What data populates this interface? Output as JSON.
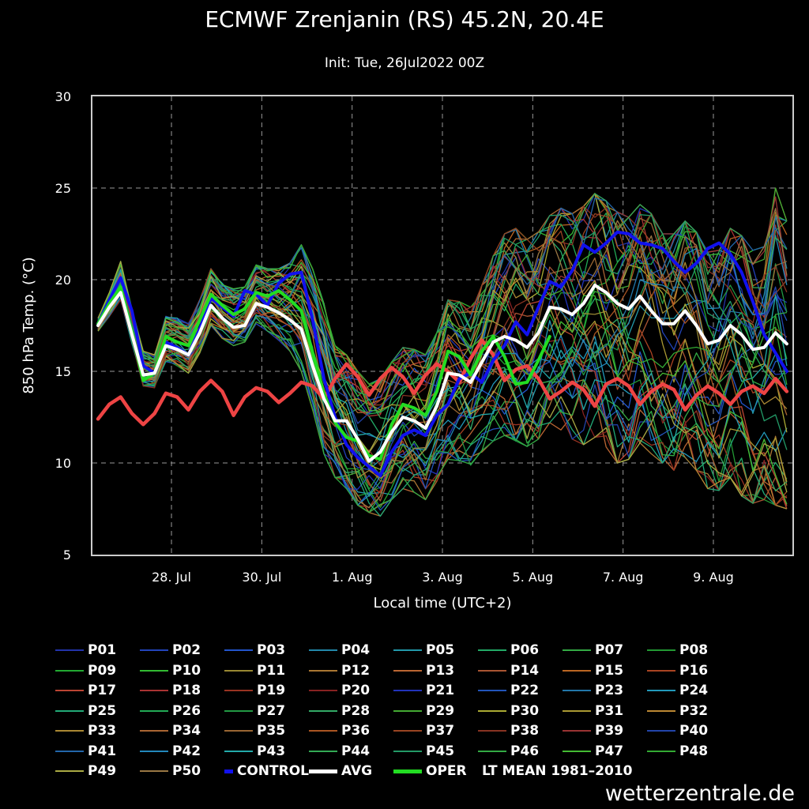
{
  "chart_data": {
    "type": "line",
    "title": "ECMWF Zrenjanin (RS) 45.2N, 20.4E",
    "subtitle": "Init: Tue, 26Jul2022 00Z",
    "xlabel": "Local time (UTC+2)",
    "ylabel": "850 hPa Temp. (°C)",
    "ylim": [
      5,
      30
    ],
    "yticks": [
      5,
      10,
      15,
      20,
      25,
      30
    ],
    "xlim": [
      0,
      15.5
    ],
    "xticks": [
      {
        "x": 1.75,
        "label": "28. Jul"
      },
      {
        "x": 3.75,
        "label": "30. Jul"
      },
      {
        "x": 5.75,
        "label": "1. Aug"
      },
      {
        "x": 7.75,
        "label": "3. Aug"
      },
      {
        "x": 9.75,
        "label": "5. Aug"
      },
      {
        "x": 11.75,
        "label": "7. Aug"
      },
      {
        "x": 13.75,
        "label": "9. Aug"
      }
    ],
    "grid": true,
    "legend_position": "bottom",
    "x": [
      0.125,
      0.375,
      0.625,
      0.875,
      1.125,
      1.375,
      1.625,
      1.875,
      2.125,
      2.375,
      2.625,
      2.875,
      3.125,
      3.375,
      3.625,
      3.875,
      4.125,
      4.375,
      4.625,
      4.875,
      5.125,
      5.375,
      5.625,
      5.875,
      6.125,
      6.375,
      6.625,
      6.875,
      7.125,
      7.375,
      7.625,
      7.875,
      8.125,
      8.375,
      8.625,
      8.875,
      9.125,
      9.375,
      9.625,
      9.875,
      10.125,
      10.375,
      10.625,
      10.875,
      11.125,
      11.375,
      11.625,
      11.875,
      12.125,
      12.375,
      12.625,
      12.875,
      13.125,
      13.375,
      13.625,
      13.875,
      14.125,
      14.375,
      14.625,
      14.875,
      15.125,
      15.375
    ],
    "series": [
      {
        "name": "CONTROL",
        "color": "#1111ee",
        "width": 4,
        "values": [
          17.6,
          18.9,
          20.1,
          18.3,
          15.3,
          14.9,
          16.6,
          16.3,
          15.9,
          17.3,
          19.0,
          18.5,
          18.0,
          19.4,
          19.2,
          18.6,
          19.8,
          20.3,
          20.4,
          17.8,
          14.6,
          12.5,
          11.0,
          10.3,
          9.8,
          9.3,
          10.6,
          11.5,
          11.8,
          11.5,
          12.6,
          13.2,
          14.6,
          14.9,
          14.4,
          15.6,
          16.4,
          17.7,
          17.0,
          18.5,
          19.9,
          19.6,
          20.5,
          21.9,
          21.5,
          22.0,
          22.6,
          22.5,
          22.0,
          21.9,
          21.7,
          21.0,
          20.4,
          20.9,
          21.7,
          22.0,
          21.4,
          20.4,
          18.8,
          17.0,
          16.0,
          15.0
        ]
      },
      {
        "name": "AVG",
        "color": "#ffffff",
        "width": 4,
        "values": [
          17.5,
          18.5,
          19.3,
          17.0,
          14.8,
          14.9,
          16.4,
          16.2,
          15.9,
          17.1,
          18.6,
          17.9,
          17.4,
          17.5,
          18.7,
          18.5,
          18.2,
          17.8,
          17.3,
          15.3,
          13.5,
          12.3,
          12.3,
          11.3,
          10.1,
          10.6,
          11.7,
          12.5,
          12.3,
          11.9,
          13.1,
          14.9,
          14.8,
          14.4,
          15.5,
          16.6,
          16.9,
          16.7,
          16.3,
          17.1,
          18.5,
          18.4,
          18.1,
          18.7,
          19.7,
          19.3,
          18.7,
          18.4,
          19.1,
          18.3,
          17.6,
          17.6,
          18.3,
          17.5,
          16.5,
          16.7,
          17.5,
          17.0,
          16.2,
          16.3,
          17.1,
          16.5
        ]
      },
      {
        "name": "OPER",
        "color": "#22dd22",
        "width": 4,
        "values": [
          17.6,
          18.7,
          19.6,
          17.1,
          14.5,
          14.9,
          16.9,
          16.6,
          16.4,
          17.8,
          19.2,
          18.6,
          18.1,
          18.4,
          19.3,
          19.1,
          19.4,
          18.9,
          18.3,
          16.0,
          13.8,
          12.2,
          11.4,
          11.2,
          10.4,
          10.2,
          12.1,
          13.2,
          13.0,
          12.6,
          13.9,
          16.1,
          15.8,
          14.8,
          16.1,
          16.9,
          15.8,
          14.3,
          14.4,
          15.6,
          16.9,
          null,
          null,
          null,
          null,
          null,
          null,
          null,
          null,
          null,
          null,
          null,
          null,
          null,
          null,
          null,
          null,
          null,
          null,
          null,
          null,
          null
        ]
      },
      {
        "name": "LT MEAN 1981-2010",
        "color": "#ee4444",
        "width": 4.5,
        "values": [
          12.4,
          13.2,
          13.6,
          12.7,
          12.1,
          12.7,
          13.8,
          13.6,
          12.9,
          13.9,
          14.5,
          13.9,
          12.6,
          13.6,
          14.1,
          13.9,
          13.3,
          13.8,
          14.4,
          14.2,
          13.5,
          14.6,
          15.4,
          14.7,
          13.7,
          14.6,
          15.2,
          14.7,
          13.8,
          14.8,
          15.4,
          15.0,
          14.4,
          15.7,
          16.7,
          15.9,
          14.5,
          15.1,
          15.3,
          14.6,
          13.5,
          13.9,
          14.4,
          14.0,
          13.1,
          14.3,
          14.6,
          14.2,
          13.2,
          13.9,
          14.3,
          14.0,
          12.9,
          13.7,
          14.2,
          13.8,
          13.2,
          13.9,
          14.2,
          13.8,
          14.6,
          13.9
        ]
      }
    ],
    "ensemble_members": [
      "P01",
      "P02",
      "P03",
      "P04",
      "P05",
      "P06",
      "P07",
      "P08",
      "P09",
      "P10",
      "P11",
      "P12",
      "P13",
      "P14",
      "P15",
      "P16",
      "P17",
      "P18",
      "P19",
      "P20",
      "P21",
      "P22",
      "P23",
      "P24",
      "P25",
      "P26",
      "P27",
      "P28",
      "P29",
      "P30",
      "P31",
      "P32",
      "P33",
      "P34",
      "P35",
      "P36",
      "P37",
      "P38",
      "P39",
      "P40",
      "P41",
      "P42",
      "P43",
      "P44",
      "P45",
      "P46",
      "P47",
      "P48",
      "P49",
      "P50"
    ],
    "member_colors": [
      "#2233aa",
      "#2244bb",
      "#2255cc",
      "#2288aa",
      "#2299aa",
      "#22aa66",
      "#33aa44",
      "#229933",
      "#22aa33",
      "#33bb33",
      "#998833",
      "#aa7733",
      "#bb6633",
      "#aa5533",
      "#bb6622",
      "#aa4422",
      "#bb4433",
      "#aa3333",
      "#993322",
      "#882222",
      "#2233bb",
      "#2255bb",
      "#2277aa",
      "#2299bb",
      "#22aa77",
      "#22aa55",
      "#229944",
      "#33aa66",
      "#44aa33",
      "#aaaa33",
      "#aa9933",
      "#bb8833",
      "#aa8833",
      "#aa6633",
      "#996633",
      "#aa5522",
      "#994422",
      "#883322",
      "#993333",
      "#2244aa",
      "#2266aa",
      "#2288bb",
      "#22aaaa",
      "#33aa55",
      "#229966",
      "#33aa44",
      "#44bb33",
      "#33aa33",
      "#aaaa44",
      "#997744"
    ],
    "member_spread": {
      "low": [
        17.2,
        18.0,
        18.9,
        16.5,
        14.2,
        14.1,
        15.5,
        15.3,
        14.9,
        16.0,
        17.5,
        16.8,
        16.4,
        16.6,
        17.6,
        17.2,
        16.7,
        16.1,
        15.0,
        12.9,
        10.5,
        9.2,
        8.6,
        7.7,
        7.3,
        7.1,
        8.0,
        8.6,
        8.4,
        8.0,
        9.0,
        10.2,
        10.1,
        9.8,
        10.6,
        11.2,
        11.5,
        11.2,
        10.9,
        11.3,
        12.2,
        11.8,
        11.3,
        11.0,
        11.4,
        10.6,
        10.0,
        10.2,
        11.1,
        10.5,
        10.0,
        9.6,
        10.3,
        9.6,
        8.6,
        8.5,
        9.2,
        8.2,
        7.8,
        8.0,
        7.7,
        7.5
      ],
      "high": [
        17.9,
        19.3,
        21.0,
        18.4,
        16.1,
        15.9,
        18.0,
        17.9,
        17.6,
        18.9,
        20.6,
        19.8,
        19.5,
        19.6,
        20.8,
        20.6,
        20.6,
        20.9,
        21.9,
        20.6,
        18.7,
        16.4,
        15.9,
        15.0,
        14.3,
        14.6,
        15.5,
        16.3,
        16.2,
        15.9,
        17.1,
        18.9,
        18.8,
        18.5,
        19.7,
        21.3,
        22.5,
        22.8,
        22.2,
        22.6,
        23.5,
        23.9,
        23.6,
        24.0,
        24.7,
        24.3,
        23.7,
        23.4,
        24.1,
        23.6,
        22.5,
        22.5,
        23.2,
        22.6,
        21.5,
        21.6,
        22.8,
        22.4,
        21.6,
        21.8,
        25.0,
        23.2
      ]
    }
  },
  "watermark": "wetterzentrale.de"
}
